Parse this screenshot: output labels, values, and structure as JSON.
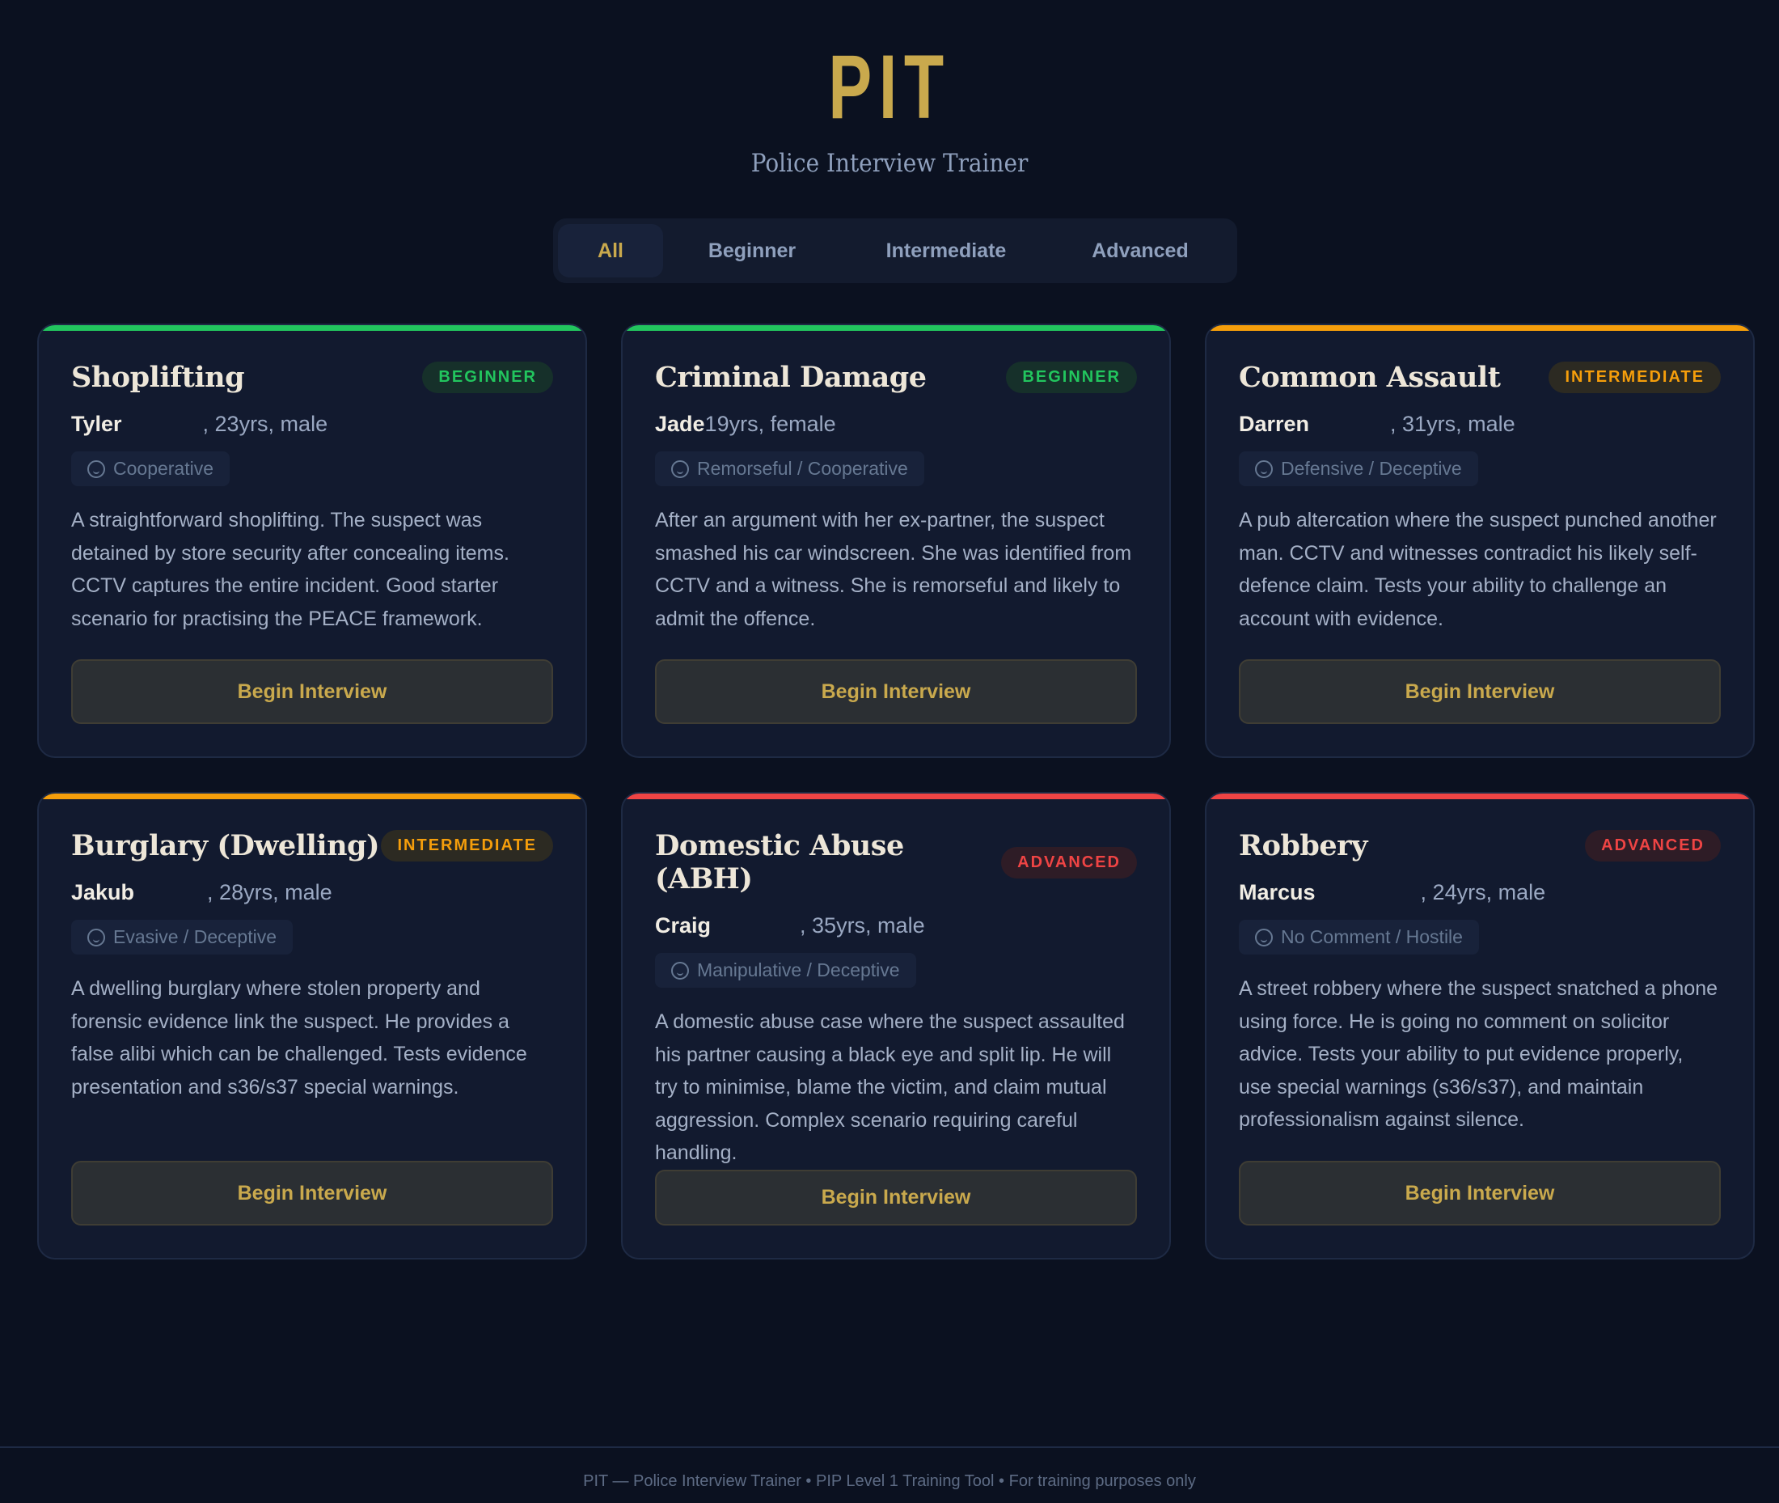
{
  "header": {
    "logo": "PIT",
    "subtitle": "Police Interview Trainer"
  },
  "tabs": [
    {
      "label": "All",
      "active": true
    },
    {
      "label": "Beginner"
    },
    {
      "label": "Intermediate"
    },
    {
      "label": "Advanced"
    }
  ],
  "colors": {
    "beginner": "#22c55e",
    "intermediate": "#f59e0b",
    "advanced": "#ef4444",
    "accent": "#c9a94d"
  },
  "cards": [
    {
      "title": "Shoplifting",
      "level": "BEGINNER",
      "name": "Tyler",
      "details": ", 23yrs, male",
      "demeanour": "Cooperative",
      "description": "A straightforward shoplifting. The suspect was detained by store security after concealing items. CCTV captures the entire incident. Good starter scenario for practising the PEACE framework.",
      "button": "Begin Interview"
    },
    {
      "title": "Criminal Damage",
      "level": "BEGINNER",
      "name": "Jade",
      "details": "19yrs, female",
      "demeanour": "Remorseful / Cooperative",
      "description": "After an argument with her ex-partner, the suspect smashed his car windscreen. She was identified from CCTV and a witness. She is remorseful and likely to admit the offence.",
      "button": "Begin Interview"
    },
    {
      "title": "Common Assault",
      "level": "INTERMEDIATE",
      "name": "Darren",
      "details": ", 31yrs, male",
      "demeanour": "Defensive / Deceptive",
      "description": "A pub altercation where the suspect punched another man. CCTV and witnesses contradict his likely self-defence claim. Tests your ability to challenge an account with evidence.",
      "button": "Begin Interview"
    },
    {
      "title": "Burglary (Dwelling)",
      "level": "INTERMEDIATE",
      "name": "Jakub",
      "details": ", 28yrs, male",
      "demeanour": "Evasive / Deceptive",
      "description": "A dwelling burglary where stolen property and forensic evidence link the suspect. He provides a false alibi which can be challenged. Tests evidence presentation and s36/s37 special warnings.",
      "button": "Begin Interview"
    },
    {
      "title": "Domestic Abuse (ABH)",
      "level": "ADVANCED",
      "name": "Craig",
      "details": ", 35yrs, male",
      "demeanour": "Manipulative / Deceptive",
      "description": "A domestic abuse case where the suspect assaulted his partner causing a black eye and split lip. He will try to minimise, blame the victim, and claim mutual aggression. Complex scenario requiring careful handling.",
      "button": "Begin Interview"
    },
    {
      "title": "Robbery",
      "level": "ADVANCED",
      "name": "Marcus",
      "details": ", 24yrs, male",
      "demeanour": "No Comment / Hostile",
      "description": "A street robbery where the suspect snatched a phone using force. He is going no comment on solicitor advice. Tests your ability to put evidence properly, use special warnings (s36/s37), and maintain professionalism against silence.",
      "button": "Begin Interview"
    }
  ],
  "footer": "PIT — Police Interview Trainer • PIP Level 1 Training Tool • For training purposes only"
}
